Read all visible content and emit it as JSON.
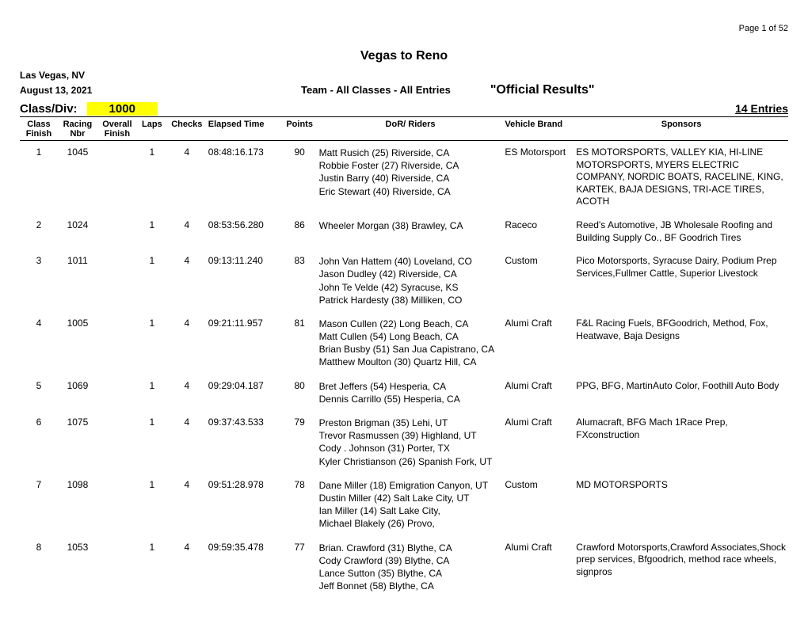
{
  "page": {
    "label": "Page 1 of 52"
  },
  "header": {
    "title": "Vegas to Reno",
    "location": "Las Vegas, NV",
    "date": "August 13, 2021",
    "subtitle": "Team - All Classes - All Entries",
    "official": "\"Official Results\""
  },
  "class": {
    "label": "Class/Div:",
    "value": "1000",
    "entries": "14 Entries"
  },
  "columns": {
    "cf": "Class Finish",
    "rn": "Racing Nbr",
    "of": "Overall Finish",
    "lp": "Laps",
    "ck": "Checks",
    "et": "Elapsed Time",
    "pt": "Points",
    "dr": "DoR/ Riders",
    "vb": "Vehicle Brand",
    "sp": "Sponsors"
  },
  "rows": [
    {
      "cf": "1",
      "rn": "1045",
      "of": "",
      "lp": "1",
      "ck": "4",
      "et": "08:48:16.173",
      "pt": "90",
      "riders": [
        "Matt Rusich (25) Riverside, CA",
        "Robbie Foster (27) Riverside, CA",
        "Justin Barry (40) Riverside, CA",
        "Eric Stewart (40) Riverside, CA"
      ],
      "vb": "ES Motorsport",
      "sp": "ES MOTORSPORTS, VALLEY KIA, HI-LINE MOTORSPORTS, MYERS ELECTRIC COMPANY, NORDIC BOATS, RACELINE, KING, KARTEK, BAJA DESIGNS, TRI-ACE TIRES, ACOTH"
    },
    {
      "cf": "2",
      "rn": "1024",
      "of": "",
      "lp": "1",
      "ck": "4",
      "et": "08:53:56.280",
      "pt": "86",
      "riders": [
        "Wheeler Morgan (38) Brawley, CA"
      ],
      "vb": "Raceco",
      "sp": "Reed's Automotive, JB Wholesale Roofing and Building Supply Co., BF Goodrich Tires"
    },
    {
      "cf": "3",
      "rn": "1011",
      "of": "",
      "lp": "1",
      "ck": "4",
      "et": "09:13:11.240",
      "pt": "83",
      "riders": [
        "John Van Hattem (40) Loveland, CO",
        "Jason Dudley (42) Riverside, CA",
        "John Te Velde (42) Syracuse, KS",
        "Patrick Hardesty (38) Milliken, CO"
      ],
      "vb": "Custom",
      "sp": "Pico Motorsports, Syracuse Dairy, Podium Prep Services,Fullmer Cattle, Superior Livestock"
    },
    {
      "cf": "4",
      "rn": "1005",
      "of": "",
      "lp": "1",
      "ck": "4",
      "et": "09:21:11.957",
      "pt": "81",
      "riders": [
        "Mason Cullen (22) Long Beach, CA",
        "Matt Cullen (54) Long Beach, CA",
        "Brian Busby (51) San Jua Capistrano, CA",
        "Matthew Moulton (30) Quartz Hill, CA"
      ],
      "vb": "Alumi Craft",
      "sp": "F&L Racing Fuels, BFGoodrich, Method, Fox, Heatwave, Baja Designs"
    },
    {
      "cf": "5",
      "rn": "1069",
      "of": "",
      "lp": "1",
      "ck": "4",
      "et": "09:29:04.187",
      "pt": "80",
      "riders": [
        "Bret Jeffers (54) Hesperia, CA",
        "Dennis Carrillo (55) Hesperia, CA"
      ],
      "vb": "Alumi Craft",
      "sp": "PPG, BFG, MartinAuto Color, Foothill Auto Body"
    },
    {
      "cf": "6",
      "rn": "1075",
      "of": "",
      "lp": "1",
      "ck": "4",
      "et": "09:37:43.533",
      "pt": "79",
      "riders": [
        "Preston Brigman (35) Lehi, UT",
        "Trevor Rasmussen (39) Highland, UT",
        "Cody . Johnson (31) Porter, TX",
        "Kyler Christianson (26) Spanish Fork, UT"
      ],
      "vb": "Alumi Craft",
      "sp": "Alumacraft, BFG Mach 1Race Prep, FXconstruction"
    },
    {
      "cf": "7",
      "rn": "1098",
      "of": "",
      "lp": "1",
      "ck": "4",
      "et": "09:51:28.978",
      "pt": "78",
      "riders": [
        "Dane Miller (18) Emigration Canyon, UT",
        "Dustin Miller (42) Salt Lake City, UT",
        "Ian Miller (14) Salt Lake City,",
        "Michael Blakely (26) Provo,"
      ],
      "vb": "Custom",
      "sp": "MD MOTORSPORTS"
    },
    {
      "cf": "8",
      "rn": "1053",
      "of": "",
      "lp": "1",
      "ck": "4",
      "et": "09:59:35.478",
      "pt": "77",
      "riders": [
        "Brian. Crawford (31) Blythe, CA",
        "Cody Crawford (39) Blythe, CA",
        "Lance Sutton (35) Blythe, CA",
        "Jeff Bonnet (58) Blythe, CA"
      ],
      "vb": "Alumi Craft",
      "sp": "Crawford Motorsports,Crawford Associates,Shock prep services, Bfgoodrich, method race wheels, signpros"
    }
  ]
}
